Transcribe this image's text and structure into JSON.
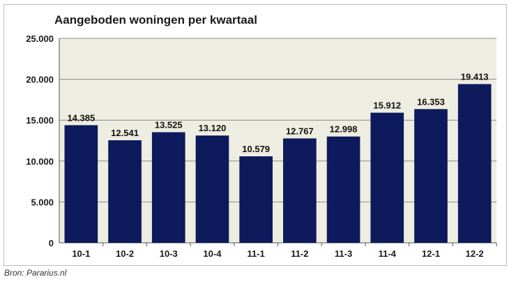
{
  "chart_data": {
    "type": "bar",
    "title": "Aangeboden woningen per kwartaal",
    "categories": [
      "10-1",
      "10-2",
      "10-3",
      "10-4",
      "11-1",
      "11-2",
      "11-3",
      "11-4",
      "12-1",
      "12-2"
    ],
    "values": [
      14385,
      12541,
      13525,
      13120,
      10579,
      12767,
      12998,
      15912,
      16353,
      19413
    ],
    "data_labels": [
      "14.385",
      "12.541",
      "13.525",
      "13.120",
      "10.579",
      "12.767",
      "12.998",
      "15.912",
      "16.353",
      "19.413"
    ],
    "ylim": [
      0,
      25000
    ],
    "yticks": [
      0,
      5000,
      10000,
      15000,
      20000,
      25000
    ],
    "ytick_labels": [
      "0",
      "5.000",
      "10.000",
      "15.000",
      "20.000",
      "25.000"
    ],
    "xlabel": "",
    "ylabel": "",
    "grid": true,
    "bar_color": "#0d1a5c",
    "plot_background": "#eeede1"
  },
  "source": "Bron: Pararius.nl"
}
